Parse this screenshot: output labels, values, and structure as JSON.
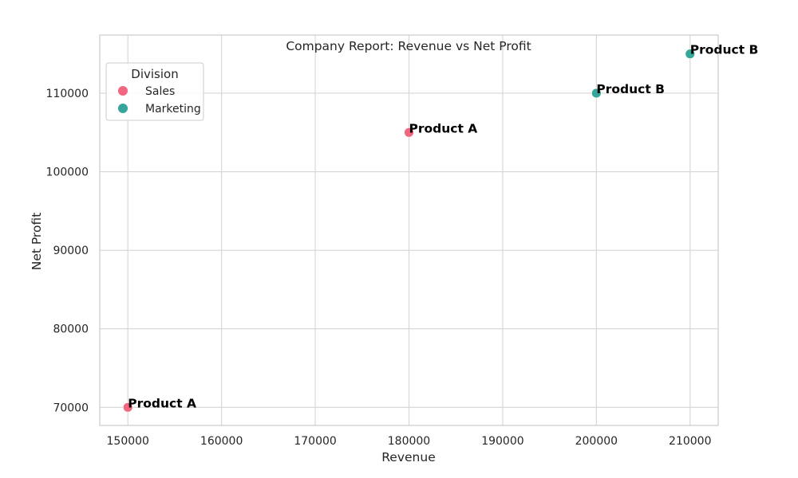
{
  "chart_data": {
    "type": "scatter",
    "title": "Company Report: Revenue vs Net Profit",
    "xlabel": "Revenue",
    "ylabel": "Net Profit",
    "xlim": [
      147000,
      213000
    ],
    "ylim": [
      67700,
      117400
    ],
    "x_ticks": [
      150000,
      160000,
      170000,
      180000,
      190000,
      200000,
      210000
    ],
    "y_ticks": [
      70000,
      80000,
      90000,
      100000,
      110000
    ],
    "grid": true,
    "legend": {
      "title": "Division",
      "placement": "top-left"
    },
    "series": [
      {
        "name": "Sales",
        "color": "#f0677f",
        "points": [
          {
            "x": 150000,
            "y": 70000,
            "label": "Product A"
          },
          {
            "x": 180000,
            "y": 105000,
            "label": "Product A"
          }
        ]
      },
      {
        "name": "Marketing",
        "color": "#36a59a",
        "points": [
          {
            "x": 200000,
            "y": 110000,
            "label": "Product B"
          },
          {
            "x": 210000,
            "y": 115000,
            "label": "Product B"
          }
        ]
      }
    ]
  }
}
